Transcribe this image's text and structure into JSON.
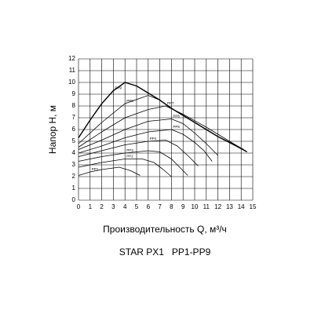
{
  "chart_data": {
    "type": "line",
    "title": "STAR PX1   PP1-PP9",
    "x_label": "Производительность Q, м³/ч",
    "y_label": "Напор H, м",
    "xlim": [
      0,
      15
    ],
    "ylim": [
      0,
      12
    ],
    "xticks": [
      0,
      1,
      2,
      3,
      4,
      5,
      6,
      7,
      8,
      9,
      10,
      11,
      12,
      13,
      14,
      15
    ],
    "yticks": [
      0,
      1,
      2,
      3,
      4,
      5,
      6,
      7,
      8,
      9,
      10,
      11,
      12
    ],
    "grid": true,
    "series": [
      {
        "name": "PP1",
        "color": "#000000",
        "x": [
          0,
          1,
          2,
          3.5,
          4.5,
          5.3
        ],
        "values": [
          2.1,
          2.4,
          2.6,
          2.8,
          2.5,
          2.1
        ]
      },
      {
        "name": "PP2",
        "color": "#000000",
        "x": [
          0,
          2,
          4,
          5.5,
          6.5,
          7.3,
          8
        ],
        "values": [
          2.8,
          3.2,
          3.5,
          3.5,
          3.2,
          2.6,
          2
        ]
      },
      {
        "name": "PP3",
        "color": "#000000",
        "x": [
          0,
          2,
          4,
          6,
          7,
          8,
          8.8,
          9.4
        ],
        "values": [
          3.3,
          3.7,
          4,
          4.2,
          4.1,
          3.5,
          2.7,
          2.1
        ]
      },
      {
        "name": "PP4",
        "color": "#000000",
        "x": [
          0,
          2,
          4,
          6,
          7.5,
          8.5,
          9.5,
          10.3
        ],
        "values": [
          3.7,
          4.2,
          4.7,
          5,
          5.1,
          4.6,
          3.7,
          2.9
        ]
      },
      {
        "name": "PP5",
        "color": "#000000",
        "x": [
          0,
          2,
          4,
          6,
          8,
          9,
          10,
          10.8,
          11.5
        ],
        "values": [
          4,
          4.6,
          5.3,
          5.8,
          6,
          5.6,
          4.9,
          4.2,
          3.3
        ]
      },
      {
        "name": "PP6",
        "color": "#000000",
        "x": [
          0,
          2,
          4,
          6,
          8,
          9,
          10,
          11,
          12
        ],
        "values": [
          4.3,
          5.1,
          6,
          6.7,
          6.9,
          6.5,
          5.7,
          4.8,
          3.8
        ]
      },
      {
        "name": "PP7",
        "color": "#000000",
        "x": [
          0,
          2,
          4,
          6,
          7.5,
          9,
          11,
          13,
          14.2
        ],
        "values": [
          4.5,
          5.8,
          7,
          7.7,
          8,
          7.3,
          6.2,
          5,
          4.3
        ]
      },
      {
        "name": "PP8",
        "color": "#000000",
        "x": [
          0,
          2,
          4,
          6,
          7,
          8,
          10,
          12,
          14.3
        ],
        "values": [
          4.8,
          6.6,
          8.2,
          8.9,
          8.5,
          7.8,
          6.6,
          5.4,
          4.2
        ]
      },
      {
        "name": "PP9",
        "color": "#000000",
        "x": [
          0,
          1,
          2,
          3,
          4,
          5,
          6,
          7,
          8,
          9,
          10,
          11,
          12,
          13,
          14,
          14.5
        ],
        "values": [
          5.3,
          6.8,
          8.2,
          9.3,
          10,
          9.7,
          9.1,
          8.5,
          7.8,
          7.2,
          6.6,
          6,
          5.4,
          4.9,
          4.4,
          4.1
        ]
      }
    ]
  }
}
